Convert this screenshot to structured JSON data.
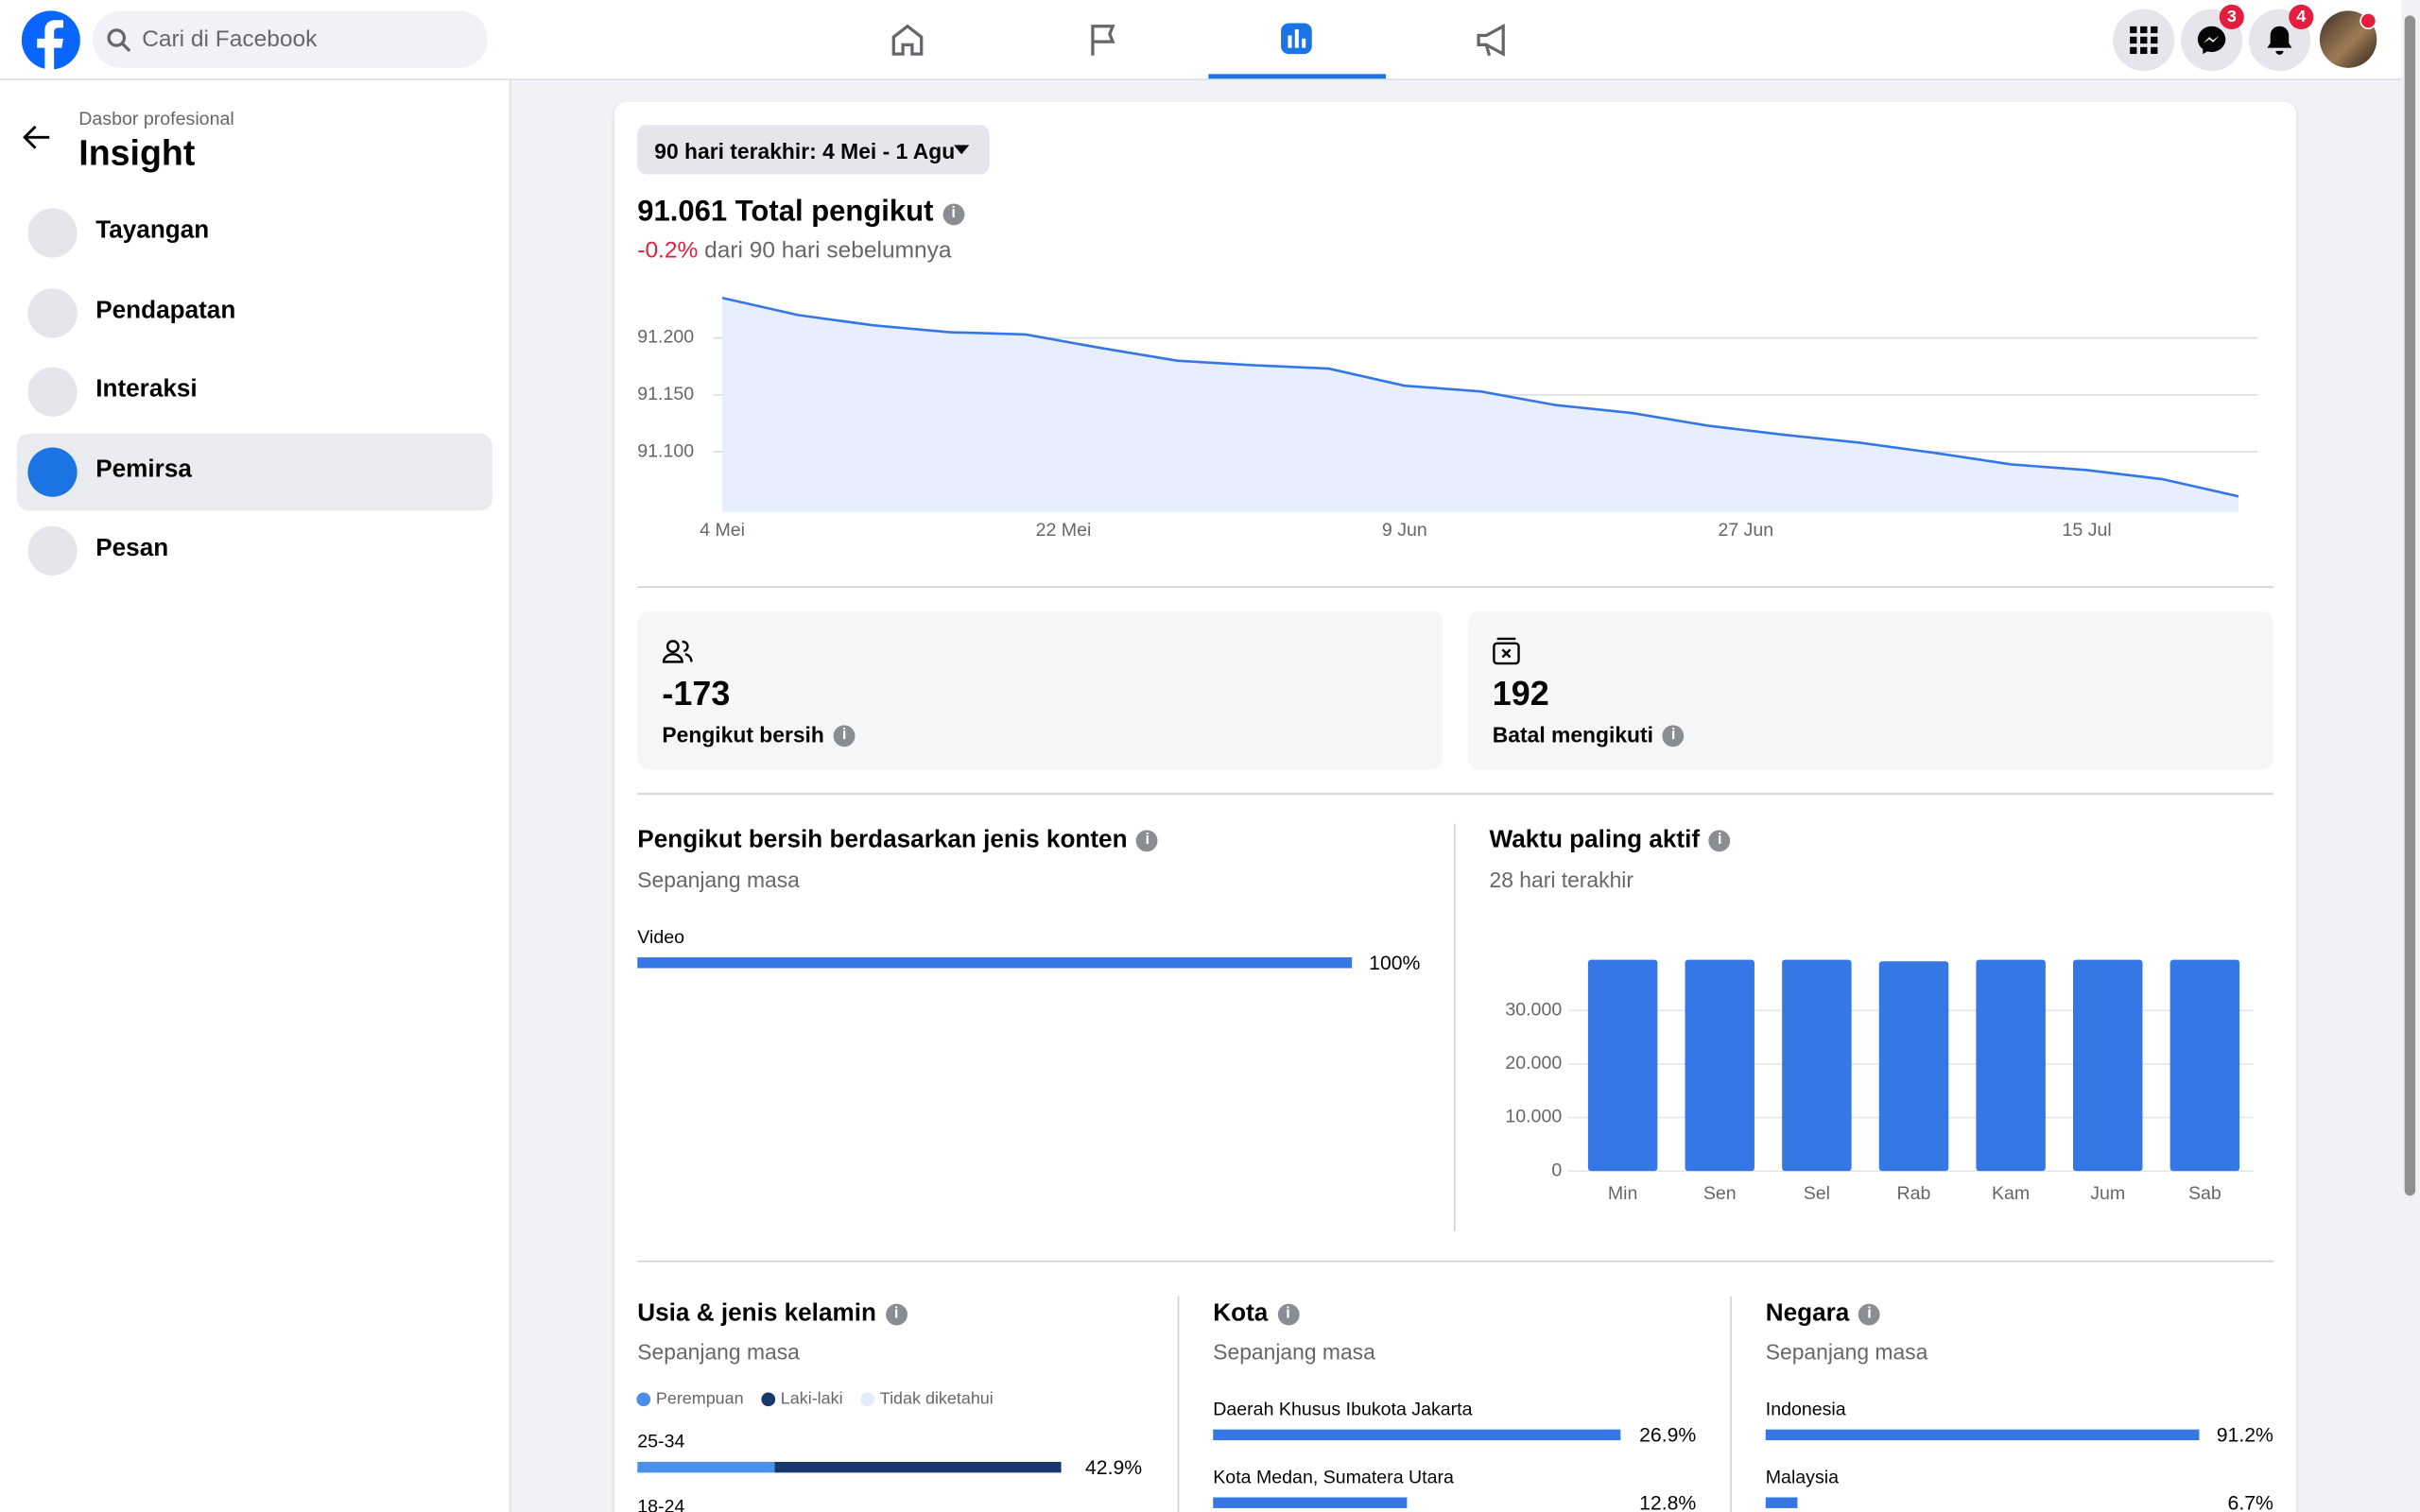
{
  "topbar": {
    "search_placeholder": "Cari di Facebook",
    "messenger_badge": "3",
    "notification_badge": "4"
  },
  "sidebar": {
    "subtitle": "Dasbor profesional",
    "title": "Insight",
    "items": [
      "Tayangan",
      "Pendapatan",
      "Interaksi",
      "Pemirsa",
      "Pesan"
    ],
    "active": 3
  },
  "date_range": "90 hari terakhir: 4 Mei - 1 Agu",
  "followers": {
    "title": "91.061 Total pengikut",
    "change": "-0.2%",
    "change_text": "dari 90 hari sebelumnya",
    "chart": {
      "type": "line",
      "color": "#3578e5",
      "fill": "#e8effc",
      "x": [
        0,
        4,
        8,
        12,
        16,
        20,
        24,
        28,
        32,
        36,
        40,
        44,
        48,
        52,
        56,
        60,
        64,
        68,
        72,
        76,
        80
      ],
      "values": [
        91235,
        91220,
        91211,
        91205,
        91203,
        91191,
        91180,
        91176,
        91173,
        91158,
        91153,
        91141,
        91134,
        91123,
        91115,
        91108,
        91099,
        91089,
        91084,
        91076,
        91061
      ],
      "xlim": [
        0,
        81
      ],
      "ylim": [
        91047,
        91246
      ],
      "xticks": [
        {
          "value": 0,
          "label": "4 Mei"
        },
        {
          "value": 18,
          "label": "22 Mei"
        },
        {
          "value": 36,
          "label": "9 Jun"
        },
        {
          "value": 54,
          "label": "27 Jun"
        },
        {
          "value": 72,
          "label": "15 Jul"
        }
      ],
      "yticks": [
        {
          "value": 91100,
          "label": "91.100"
        },
        {
          "value": 91150,
          "label": "91.150"
        },
        {
          "value": 91200,
          "label": "91.200"
        }
      ],
      "grid": true
    }
  },
  "stats": [
    {
      "value": "-173",
      "label": "Pengikut bersih"
    },
    {
      "value": "192",
      "label": "Batal mengikuti"
    }
  ],
  "content_type": {
    "title": "Pengikut bersih berdasarkan jenis konten",
    "subtitle": "Sepanjang masa",
    "chart": {
      "type": "hbar",
      "categories": [
        "Video"
      ],
      "values": [
        100
      ],
      "value_labels": [
        "100%"
      ],
      "xlim": [
        0,
        100
      ],
      "color": "#3578e5"
    }
  },
  "active_times": {
    "title": "Waktu paling aktif",
    "subtitle": "28 hari terakhir",
    "chart": {
      "type": "bar",
      "categories": [
        "Min",
        "Sen",
        "Sel",
        "Rab",
        "Kam",
        "Jum",
        "Sab"
      ],
      "values": [
        39500,
        39500,
        39500,
        39200,
        39500,
        39500,
        39500
      ],
      "color": "#3578e5",
      "ylim": [
        0,
        40000
      ],
      "yticks": [
        0,
        {
          "value": 10000,
          "label": "10.000"
        },
        {
          "value": 20000,
          "label": "20.000"
        },
        {
          "value": 30000,
          "label": "30.000"
        }
      ],
      "grid": true
    }
  },
  "age_gender": {
    "title": "Usia & jenis kelamin",
    "subtitle": "Sepanjang masa",
    "chart": {
      "type": "stacked_hbar",
      "categories": [
        "25-34",
        "18-24"
      ],
      "xlim": [
        0,
        45
      ],
      "series": [
        {
          "name": "Perempuan",
          "color": "#4a90e8",
          "values": [
            13.9,
            null
          ]
        },
        {
          "name": "Laki-laki",
          "color": "#17386b",
          "values": [
            29.0,
            null
          ]
        },
        {
          "name": "Tidak diketahui",
          "color": "#e3edfb",
          "values": [
            0,
            null
          ]
        }
      ],
      "total_labels": [
        "42.9%",
        null
      ]
    }
  },
  "city": {
    "title": "Kota",
    "subtitle": "Sepanjang masa",
    "chart": {
      "type": "hbar",
      "categories": [
        "Daerah Khusus Ibukota Jakarta",
        "Kota Medan, Sumatera Utara"
      ],
      "values": [
        26.9,
        12.8
      ],
      "value_labels": [
        "26.9%",
        "12.8%"
      ],
      "xlim": [
        0,
        27
      ],
      "color": "#3578e5"
    }
  },
  "country": {
    "title": "Negara",
    "subtitle": "Sepanjang masa",
    "chart": {
      "type": "hbar",
      "categories": [
        "Indonesia",
        "Malaysia"
      ],
      "values": [
        91.2,
        6.7
      ],
      "value_labels": [
        "91.2%",
        "6.7%"
      ],
      "xlim": [
        0,
        93
      ],
      "color": "#3578e5"
    }
  }
}
